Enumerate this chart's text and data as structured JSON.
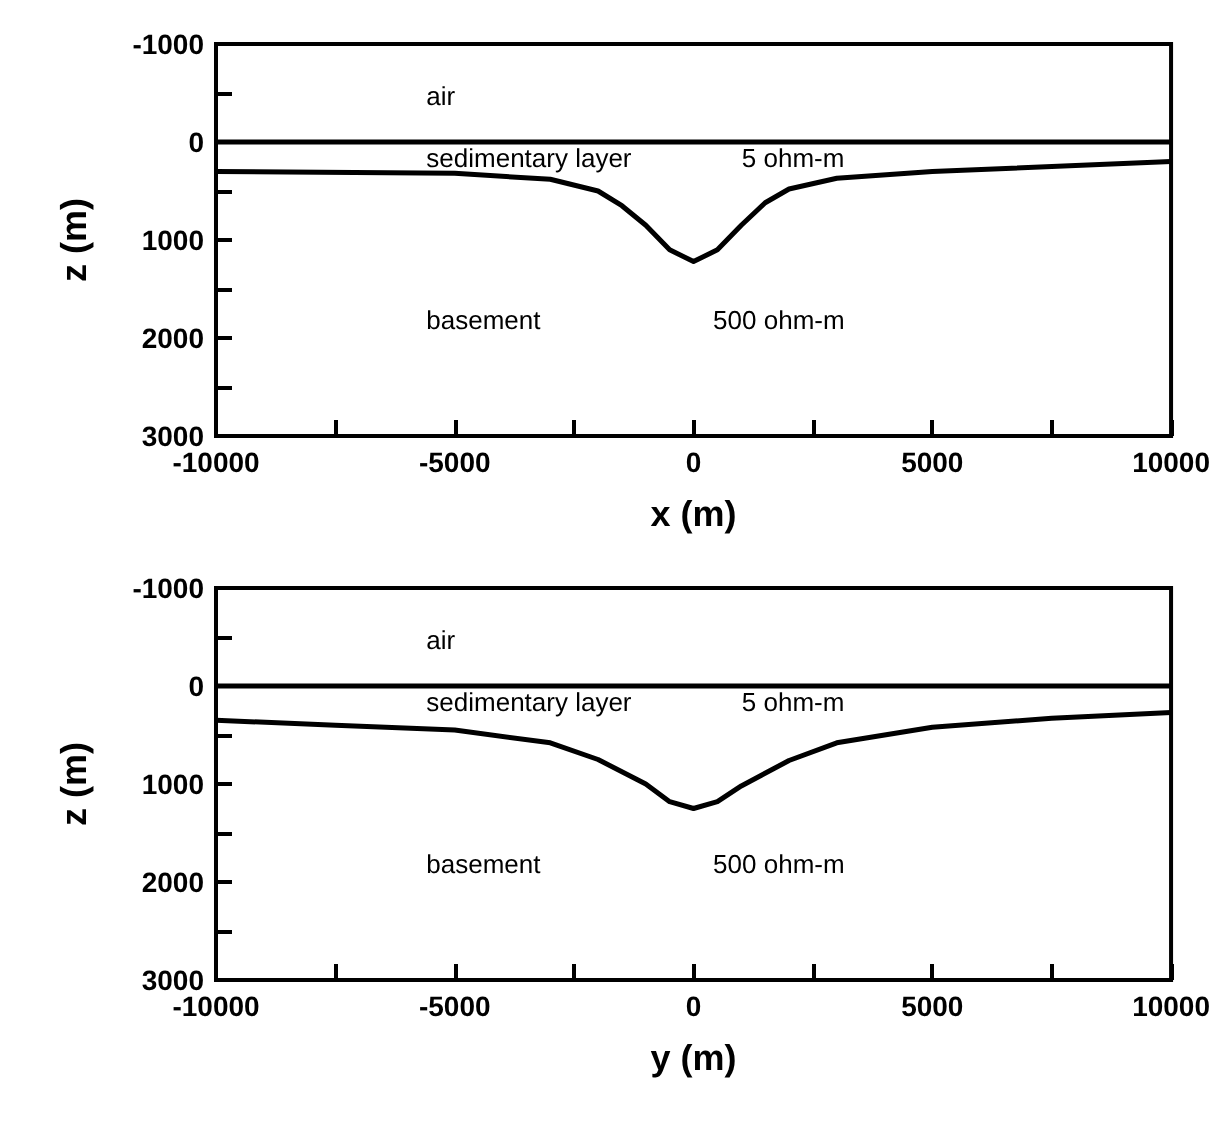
{
  "chart_data": [
    {
      "type": "line",
      "xlabel": "x (m)",
      "ylabel": "z (m)",
      "xlim": [
        -10000,
        10000
      ],
      "ylim": [
        3000,
        -1000
      ],
      "xticks": [
        -10000,
        {
          "value": -7500,
          "label": null
        },
        -5000,
        {
          "value": -2500,
          "label": null
        },
        0,
        {
          "value": 2500,
          "label": null
        },
        5000,
        {
          "value": 7500,
          "label": null
        },
        10000
      ],
      "yticks": [
        -1000,
        {
          "value": -500,
          "label": null
        },
        0,
        {
          "value": 500,
          "label": null
        },
        1000,
        {
          "value": 1500,
          "label": null
        },
        2000,
        {
          "value": 2500,
          "label": null
        },
        3000
      ],
      "grid": false,
      "marker": "none",
      "line_style": "solid",
      "series": [
        {
          "color": "#000000",
          "x": [
            -10000,
            10000
          ],
          "values": [
            0,
            0
          ]
        },
        {
          "color": "#000000",
          "x": [
            -10000,
            -5000,
            -3000,
            -2000,
            -1500,
            -1000,
            -500,
            0,
            500,
            1000,
            1500,
            2000,
            3000,
            5000,
            10000
          ],
          "values": [
            300,
            320,
            380,
            500,
            650,
            850,
            1100,
            1220,
            1100,
            850,
            620,
            480,
            370,
            300,
            200
          ]
        }
      ],
      "annotations": [
        "air",
        "sedimentary layer",
        "5 ohm-m",
        "basement",
        "500 ohm-m"
      ]
    },
    {
      "type": "line",
      "xlabel": "y (m)",
      "ylabel": "z (m)",
      "xlim": [
        -10000,
        10000
      ],
      "ylim": [
        3000,
        -1000
      ],
      "xticks": [
        -10000,
        {
          "value": -7500,
          "label": null
        },
        -5000,
        {
          "value": -2500,
          "label": null
        },
        0,
        {
          "value": 2500,
          "label": null
        },
        5000,
        {
          "value": 7500,
          "label": null
        },
        10000
      ],
      "yticks": [
        -1000,
        {
          "value": -500,
          "label": null
        },
        0,
        {
          "value": 500,
          "label": null
        },
        1000,
        {
          "value": 1500,
          "label": null
        },
        2000,
        {
          "value": 2500,
          "label": null
        },
        3000
      ],
      "grid": false,
      "marker": "none",
      "line_style": "solid",
      "series": [
        {
          "color": "#000000",
          "x": [
            -10000,
            10000
          ],
          "values": [
            0,
            0
          ]
        },
        {
          "color": "#000000",
          "x": [
            -10000,
            -7500,
            -5000,
            -3000,
            -2000,
            -1000,
            -500,
            0,
            500,
            1000,
            2000,
            3000,
            5000,
            7500,
            10000
          ],
          "values": [
            350,
            400,
            450,
            580,
            750,
            1000,
            1180,
            1250,
            1180,
            1020,
            760,
            580,
            420,
            330,
            270
          ]
        }
      ],
      "annotations": [
        "air",
        "sedimentary layer",
        "5 ohm-m",
        "basement",
        "500 ohm-m"
      ]
    }
  ]
}
